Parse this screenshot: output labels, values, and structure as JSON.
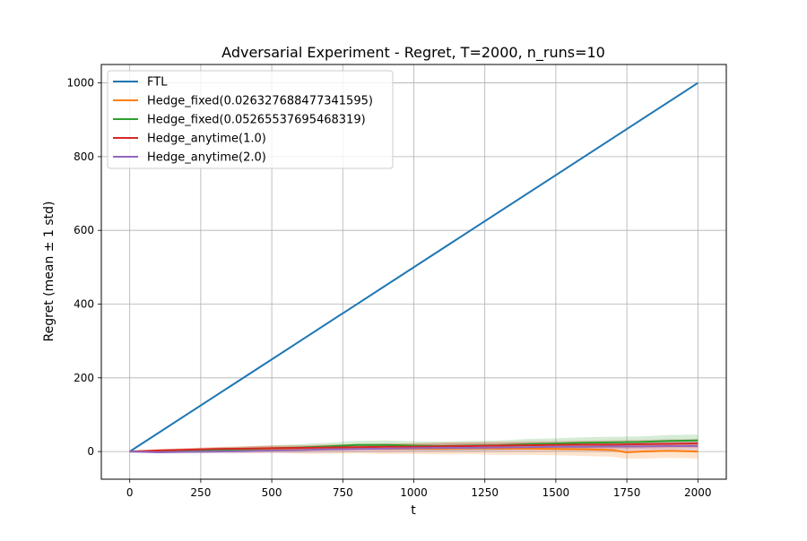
{
  "chart_data": {
    "type": "line",
    "title": "Adversarial Experiment - Regret, T=2000, n_runs=10",
    "xlabel": "t",
    "ylabel": "Regret (mean ± 1 std)",
    "xlim": [
      -100,
      2100
    ],
    "ylim": [
      -75,
      1050
    ],
    "xticks": [
      0,
      250,
      500,
      750,
      1000,
      1250,
      1500,
      1750,
      2000
    ],
    "yticks": [
      0,
      200,
      400,
      600,
      800,
      1000
    ],
    "grid": true,
    "legend_position": "upper-left",
    "series": [
      {
        "name": "FTL",
        "color": "#1f77b4",
        "x": [
          0,
          2000
        ],
        "y": [
          0,
          1000
        ],
        "std": [
          0,
          0
        ]
      },
      {
        "name": "Hedge_fixed(0.026327688477341595)",
        "color": "#ff7f0e",
        "x": [
          0,
          100,
          200,
          300,
          400,
          500,
          600,
          700,
          800,
          900,
          1000,
          1100,
          1200,
          1300,
          1400,
          1500,
          1600,
          1700,
          1750,
          1800,
          1900,
          2000
        ],
        "y": [
          0,
          2,
          3,
          4,
          5,
          6,
          5,
          6,
          8,
          7,
          8,
          8,
          9,
          8,
          8,
          7,
          6,
          4,
          -2,
          0,
          2,
          0
        ],
        "std": [
          0,
          4,
          6,
          8,
          9,
          10,
          11,
          12,
          13,
          14,
          15,
          16,
          16,
          17,
          17,
          17,
          18,
          18,
          18,
          19,
          19,
          19
        ]
      },
      {
        "name": "Hedge_fixed(0.05265537695468319)",
        "color": "#2ca02c",
        "x": [
          0,
          100,
          200,
          300,
          400,
          500,
          600,
          700,
          800,
          900,
          1000,
          1100,
          1200,
          1300,
          1400,
          1500,
          1600,
          1700,
          1800,
          1900,
          2000
        ],
        "y": [
          0,
          -1,
          2,
          4,
          6,
          9,
          11,
          14,
          18,
          18,
          16,
          15,
          16,
          17,
          20,
          22,
          24,
          25,
          26,
          29,
          30
        ],
        "std": [
          0,
          3,
          5,
          6,
          7,
          8,
          9,
          10,
          11,
          12,
          12,
          12,
          13,
          13,
          14,
          14,
          15,
          15,
          15,
          16,
          16
        ]
      },
      {
        "name": "Hedge_anytime(1.0)",
        "color": "#d62728",
        "x": [
          0,
          100,
          200,
          300,
          400,
          500,
          600,
          700,
          800,
          900,
          1000,
          1100,
          1200,
          1300,
          1400,
          1500,
          1600,
          1700,
          1800,
          1900,
          2000
        ],
        "y": [
          0,
          3,
          5,
          7,
          8,
          9,
          10,
          11,
          12,
          13,
          13,
          14,
          15,
          16,
          17,
          18,
          19,
          19,
          20,
          21,
          22
        ],
        "std": [
          0,
          3,
          4,
          5,
          6,
          7,
          7,
          8,
          8,
          9,
          9,
          10,
          10,
          10,
          11,
          11,
          11,
          12,
          12,
          12,
          12
        ]
      },
      {
        "name": "Hedge_anytime(2.0)",
        "color": "#9467bd",
        "x": [
          0,
          100,
          200,
          300,
          400,
          500,
          600,
          700,
          800,
          900,
          1000,
          1100,
          1200,
          1300,
          1400,
          1500,
          1600,
          1700,
          1800,
          1900,
          2000
        ],
        "y": [
          0,
          -2,
          -1,
          0,
          1,
          3,
          4,
          6,
          7,
          8,
          9,
          10,
          10,
          11,
          12,
          13,
          13,
          14,
          14,
          15,
          15
        ],
        "std": [
          0,
          3,
          4,
          5,
          6,
          7,
          8,
          9,
          9,
          10,
          10,
          11,
          11,
          11,
          12,
          12,
          12,
          13,
          13,
          13,
          13
        ]
      }
    ]
  }
}
